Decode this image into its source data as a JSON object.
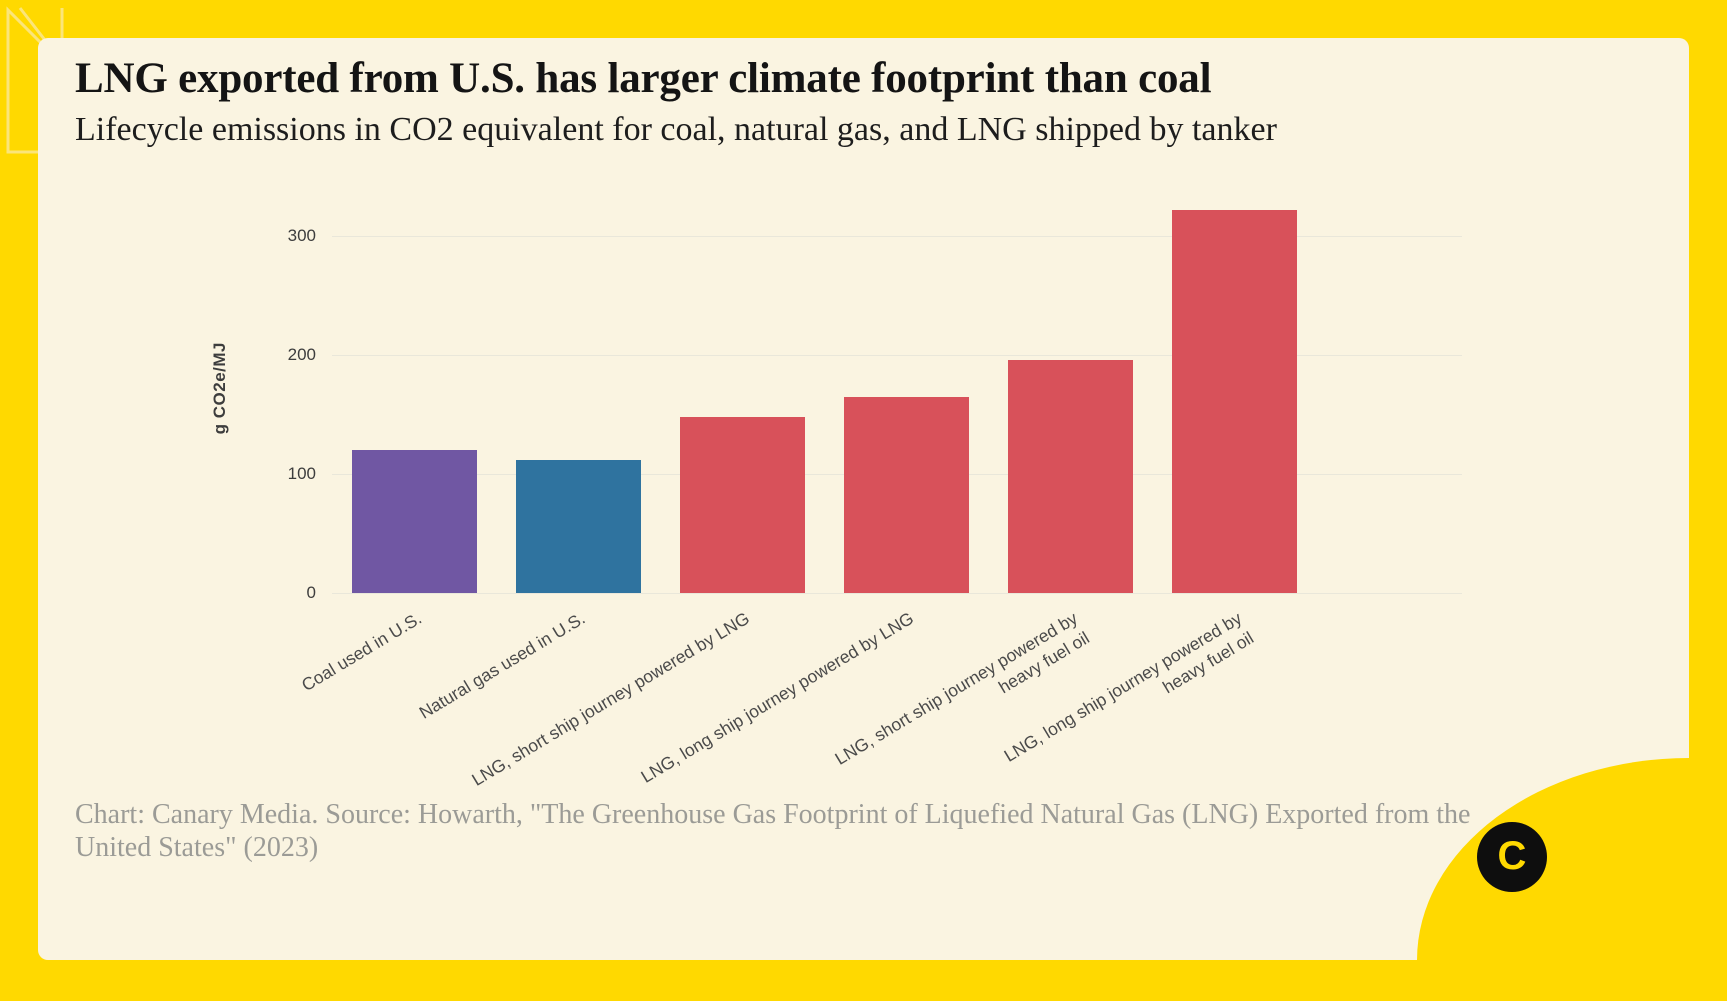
{
  "header": {
    "title": "LNG exported from U.S. has larger climate footprint than coal",
    "subtitle": "Lifecycle emissions in CO2 equivalent for coal, natural gas, and LNG shipped by tanker"
  },
  "chart_data": {
    "type": "bar",
    "categories": [
      "Coal used in U.S.",
      "Natural gas used in U.S.",
      "LNG, short ship journey powered by LNG",
      "LNG, long ship journey powered by LNG",
      "LNG, short ship journey powered by\nheavy fuel oil",
      "LNG, long ship journey powered by\nheavy fuel oil"
    ],
    "values": [
      120,
      112,
      148,
      165,
      196,
      322
    ],
    "bar_colors": [
      "#7057a3",
      "#2f739f",
      "#d8515a",
      "#d8515a",
      "#d8515a",
      "#d8515a"
    ],
    "title": "LNG exported from U.S. has larger climate footprint than coal",
    "subtitle": "Lifecycle emissions in CO2 equivalent for coal, natural gas, and LNG shipped by tanker",
    "xlabel": "",
    "ylabel": "g CO2e/MJ",
    "yticks": [
      0,
      100,
      200,
      300
    ],
    "ylim": [
      0,
      345
    ],
    "grid": true,
    "legend": false
  },
  "footer": {
    "credit": "Chart: Canary Media. Source: Howarth, \"The Greenhouse Gas Footprint of Liquefied Natural Gas (LNG) Exported from the United States\" (2023)",
    "logo_letter": "C"
  },
  "colors": {
    "frame_yellow": "#ffd900",
    "panel_cream": "#faf4e1",
    "bar_red": "#d8515a",
    "bar_purple": "#7057a3",
    "bar_blue": "#2f739f",
    "logo_black": "#0e0e0e"
  }
}
